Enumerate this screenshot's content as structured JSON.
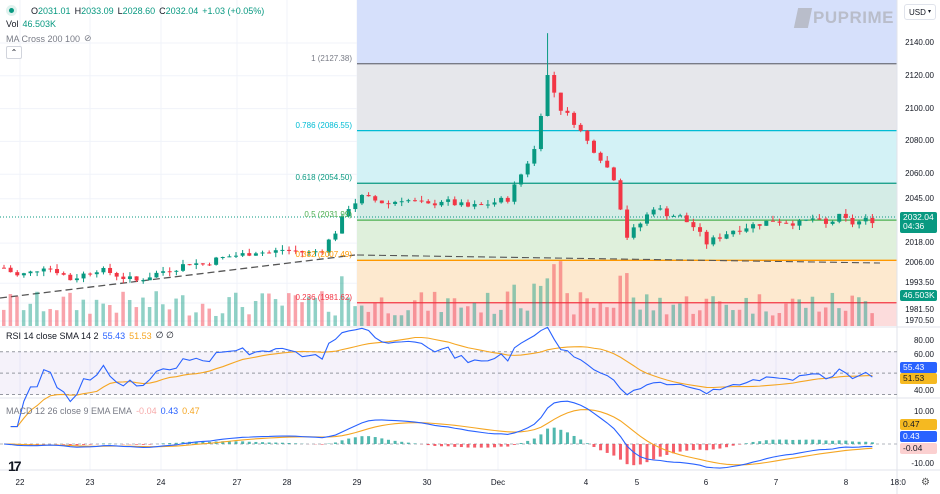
{
  "header": {
    "symbol_status_color": "#089981",
    "open_label": "O",
    "open": "2031.01",
    "high_label": "H",
    "high": "2033.09",
    "low_label": "L",
    "low": "2028.60",
    "close_label": "C",
    "close": "2032.04",
    "change": "+1.03 (+0.05%)",
    "vol_label": "Vol",
    "vol": "46.503K",
    "ma_label": "MA Cross 200 100",
    "collapse_icon": "chevron-up-icon"
  },
  "brand": "PUPRIME",
  "currency": "USD",
  "price_axis": [
    "2140.00",
    "2120.00",
    "2100.00",
    "2080.00",
    "2060.00",
    "2045.00",
    "2018.00",
    "2006.00",
    "1993.50",
    "1981.50",
    "1970.50"
  ],
  "price_axis_values": [
    2140,
    2120,
    2100,
    2080,
    2060,
    2045,
    2018,
    2006,
    1993.5,
    1981.5,
    1970.5
  ],
  "last_price": {
    "price": "2032.04",
    "countdown": "04:36",
    "volume": "46.503K"
  },
  "fib_levels": [
    {
      "label": "1 (2127.38)",
      "price": 2127.38,
      "color": "#787b86",
      "fill": "#e6e7eb"
    },
    {
      "label": "0.786 (2086.55)",
      "price": 2086.55,
      "color": "#00bcd4",
      "fill": "#d3f2f6"
    },
    {
      "label": "0.618 (2054.50)",
      "price": 2054.5,
      "color": "#089981",
      "fill": "#d4ece6"
    },
    {
      "label": "0.5 (2031.99)",
      "price": 2031.99,
      "color": "#4caf50",
      "fill": "#dff0dc"
    },
    {
      "label": "0.382 (2007.49)",
      "price": 2007.49,
      "color": "#ff9800",
      "fill": "#fde9cf"
    },
    {
      "label": "0.236 (1981.62)",
      "price": 1981.62,
      "color": "#f23645",
      "fill": "#fcdcdc"
    }
  ],
  "fib_top_fill": "#d6e0fb",
  "closes": [
    2003,
    1998,
    2000,
    2004,
    2001,
    1996,
    1999,
    2002,
    2000,
    1997,
    1995,
    1998,
    2001,
    2003,
    2006,
    2005,
    2008,
    2010,
    2011,
    2013,
    2012,
    2014,
    2013,
    2012,
    2014,
    2025,
    2040,
    2046,
    2044,
    2042,
    2045,
    2043,
    2041,
    2044,
    2042,
    2040,
    2041,
    2043,
    2045,
    2060,
    2075,
    2120,
    2100,
    2092,
    2080,
    2070,
    2058,
    2022,
    2030,
    2040,
    2036,
    2034,
    2028,
    2018,
    2022,
    2026,
    2028,
    2030,
    2032,
    2031,
    2030,
    2033,
    2029,
    2034,
    2030,
    2032
  ],
  "rsi": {
    "label": "RSI 14 close SMA 14 2",
    "value": "55.43",
    "sma": "51.53",
    "extra": "∅ ∅",
    "axis": [
      "80.00",
      "60.00",
      "40.00"
    ],
    "colors": {
      "rsi": "#2962ff",
      "sma": "#f5a623"
    }
  },
  "macd": {
    "label": "MACD 12 26 close 9 EMA EMA",
    "hist": "-0.04",
    "macd": "0.43",
    "signal": "0.47",
    "axis": [
      "10.00",
      "-10.00"
    ]
  },
  "time_axis": [
    "22",
    "23",
    "24",
    "27",
    "28",
    "29",
    "30",
    "Dec",
    "4",
    "5",
    "6",
    "7",
    "8",
    "18:0"
  ],
  "colors": {
    "up": "#089981",
    "down": "#f23645"
  }
}
